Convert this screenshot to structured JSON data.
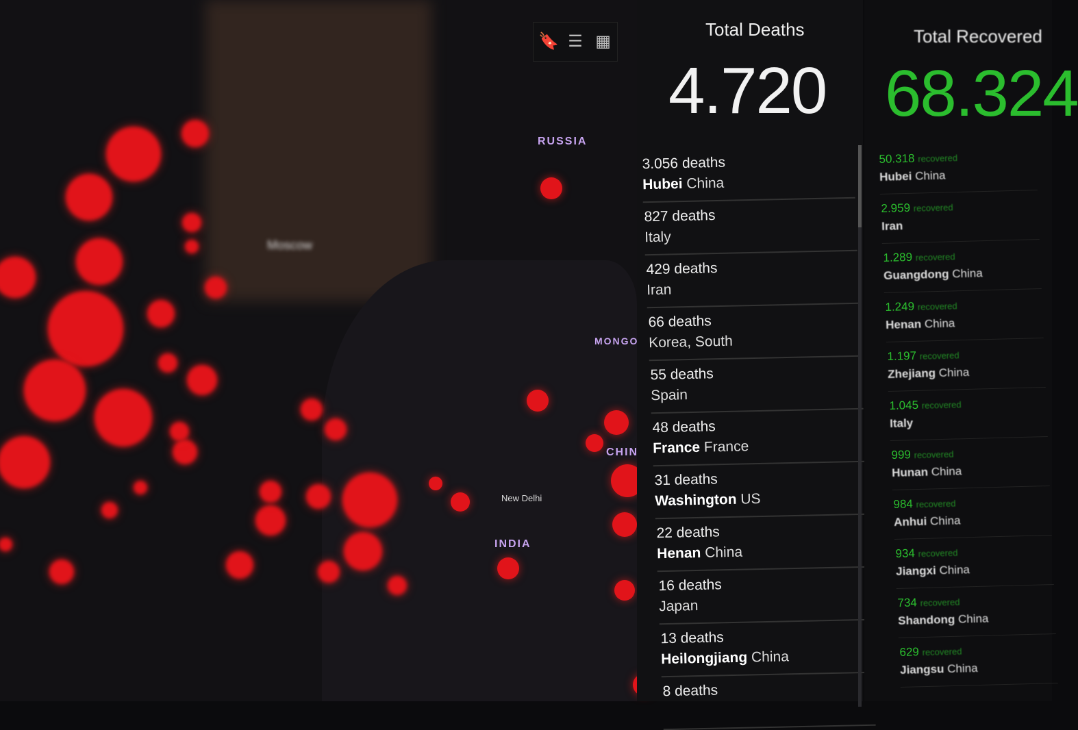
{
  "toolbar": {
    "icons": [
      "bookmark-icon",
      "list-icon",
      "grid-icon"
    ],
    "glyphs": [
      "🔖",
      "☰",
      "▦"
    ]
  },
  "map": {
    "labels": {
      "russia": "RUSSIA",
      "mongolia": "MONGO",
      "china": "CHIN",
      "india": "INDIA",
      "new_delhi": "New Delhi",
      "moscow": "Moscow"
    }
  },
  "colors": {
    "deaths": "#e1141a",
    "recovered": "#2bbd2e",
    "background": "#0b0b0d"
  },
  "deaths_panel": {
    "title": "Total Deaths",
    "total": "4.720",
    "items": [
      {
        "count": "3.056 deaths",
        "region": "Hubei",
        "country": "China"
      },
      {
        "count": "827 deaths",
        "region": "",
        "country": "Italy"
      },
      {
        "count": "429 deaths",
        "region": "",
        "country": "Iran"
      },
      {
        "count": "66 deaths",
        "region": "",
        "country": "Korea, South"
      },
      {
        "count": "55 deaths",
        "region": "",
        "country": "Spain"
      },
      {
        "count": "48 deaths",
        "region": "France",
        "country": "France"
      },
      {
        "count": "31 deaths",
        "region": "Washington",
        "country": "US"
      },
      {
        "count": "22 deaths",
        "region": "Henan",
        "country": "China"
      },
      {
        "count": "16 deaths",
        "region": "",
        "country": "Japan"
      },
      {
        "count": "13 deaths",
        "region": "Heilongjiang",
        "country": "China"
      },
      {
        "count": "8 deaths",
        "region": "",
        "country": ""
      }
    ]
  },
  "recovered_panel": {
    "title": "Total Recovered",
    "total": "68.324",
    "suffix": "recovered",
    "items": [
      {
        "count": "50.318",
        "region": "Hubei",
        "country": "China"
      },
      {
        "count": "2.959",
        "region": "Iran",
        "country": ""
      },
      {
        "count": "1.289",
        "region": "Guangdong",
        "country": "China"
      },
      {
        "count": "1.249",
        "region": "Henan",
        "country": "China"
      },
      {
        "count": "1.197",
        "region": "Zhejiang",
        "country": "China"
      },
      {
        "count": "1.045",
        "region": "Italy",
        "country": ""
      },
      {
        "count": "999",
        "region": "Hunan",
        "country": "China"
      },
      {
        "count": "984",
        "region": "Anhui",
        "country": "China"
      },
      {
        "count": "934",
        "region": "Jiangxi",
        "country": "China"
      },
      {
        "count": "734",
        "region": "Shandong",
        "country": "China"
      },
      {
        "count": "629",
        "region": "Jiangsu",
        "country": "China"
      }
    ]
  }
}
